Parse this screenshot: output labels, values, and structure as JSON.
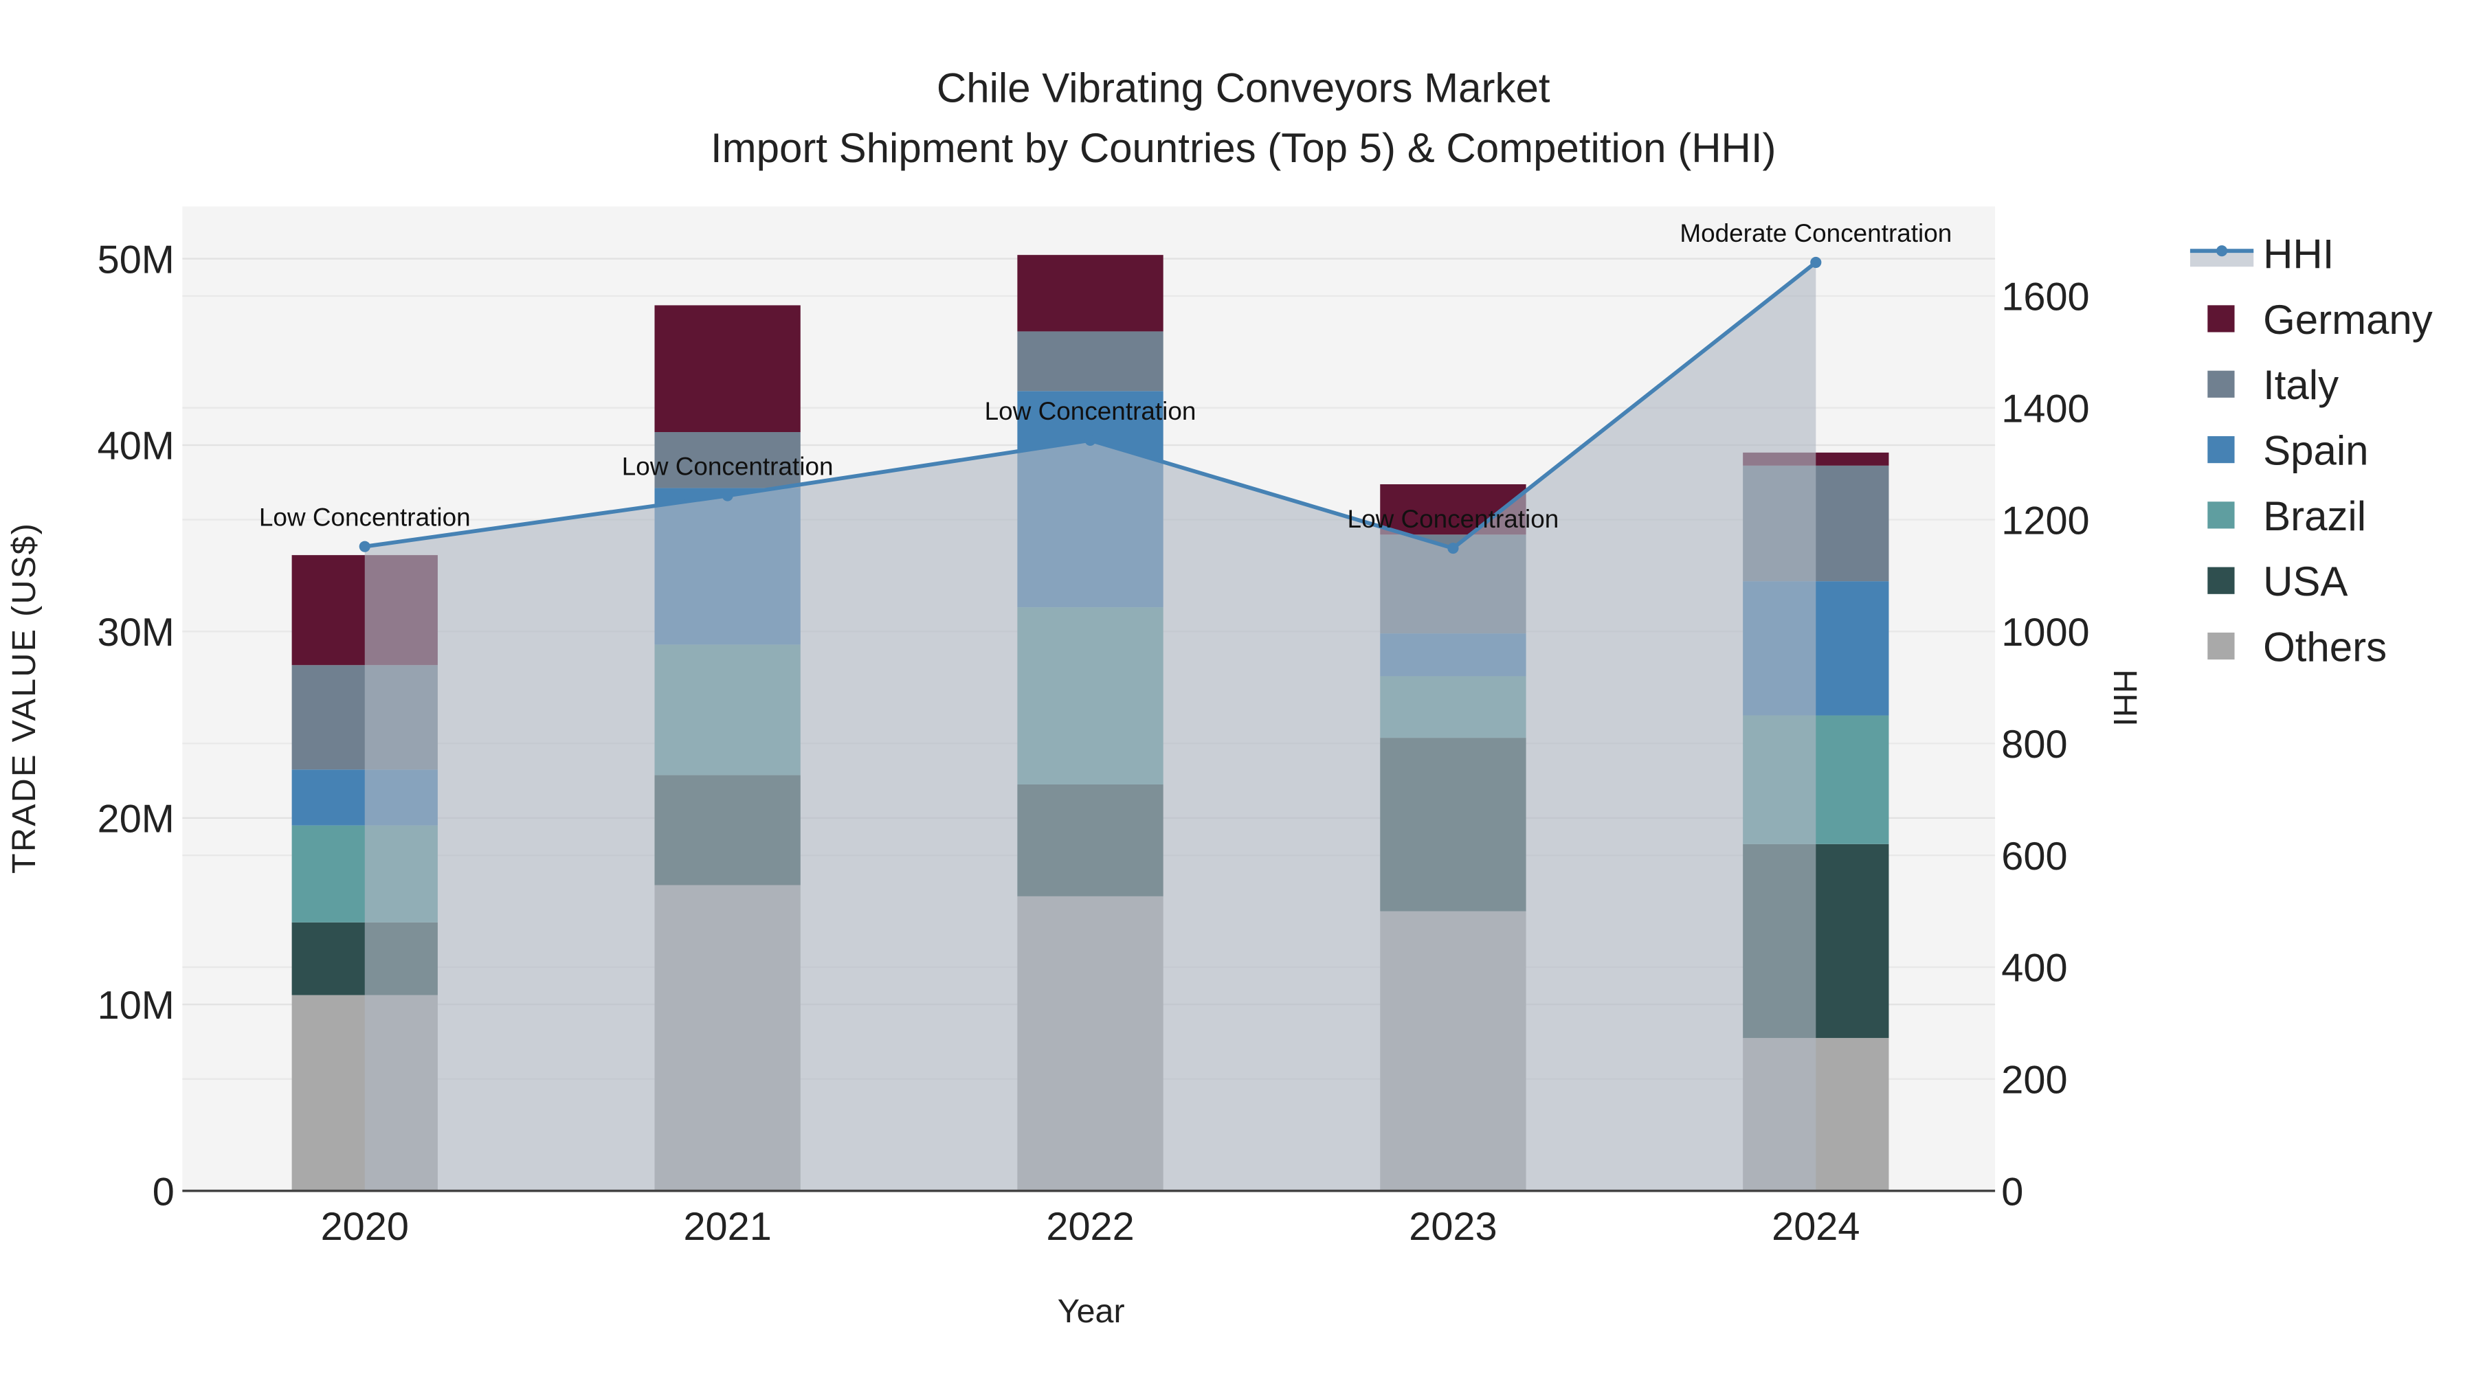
{
  "chart_data": {
    "type": "bar",
    "title": "Chile Vibrating Conveyors Market",
    "subtitle": "Import Shipment by Countries (Top 5) & Competition (HHI)",
    "xlabel": "Year",
    "ylabel": "TRADE VALUE (US$)",
    "y2label": "HHI",
    "categories": [
      "2020",
      "2021",
      "2022",
      "2023",
      "2024"
    ],
    "stacked": true,
    "ylim": [
      0,
      52.8
    ],
    "y_unit": "M",
    "yticks": [
      0,
      10,
      20,
      30,
      40,
      50
    ],
    "ytick_labels": [
      "0",
      "10M",
      "20M",
      "30M",
      "40M",
      "50M"
    ],
    "y2lim": [
      0,
      1760
    ],
    "y2ticks": [
      0,
      200,
      400,
      600,
      800,
      1000,
      1200,
      1400,
      1600
    ],
    "y2tick_labels": [
      "0",
      "200",
      "400",
      "600",
      "800",
      "1000",
      "1200",
      "1400",
      "1600"
    ],
    "grid": true,
    "legend_placement": "right",
    "series": [
      {
        "name": "Others",
        "color": "#a9a9a9",
        "values": [
          10.5,
          16.4,
          15.8,
          15.0,
          8.2
        ]
      },
      {
        "name": "USA",
        "color": "#2f4f4f",
        "values": [
          3.9,
          5.9,
          6.0,
          9.3,
          10.4
        ]
      },
      {
        "name": "Brazil",
        "color": "#5f9ea0",
        "values": [
          5.2,
          7.0,
          9.5,
          3.3,
          6.9
        ]
      },
      {
        "name": "Spain",
        "color": "#4682b4",
        "values": [
          3.0,
          8.4,
          11.6,
          2.3,
          7.2
        ]
      },
      {
        "name": "Italy",
        "color": "#708090",
        "values": [
          5.6,
          3.0,
          3.2,
          5.3,
          6.2
        ]
      },
      {
        "name": "Germany",
        "color": "#5e1533",
        "values": [
          5.9,
          6.8,
          4.1,
          2.7,
          0.7
        ]
      }
    ],
    "hhi": {
      "name": "HHI",
      "color": "#4682b4",
      "values": [
        1152,
        1243,
        1342,
        1149,
        1660
      ],
      "annotations": [
        "Low Concentration",
        "Low Concentration",
        "Low Concentration",
        "Low Concentration",
        "Moderate Concentration"
      ]
    },
    "legend_order": [
      "HHI",
      "Germany",
      "Italy",
      "Spain",
      "Brazil",
      "USA",
      "Others"
    ]
  }
}
